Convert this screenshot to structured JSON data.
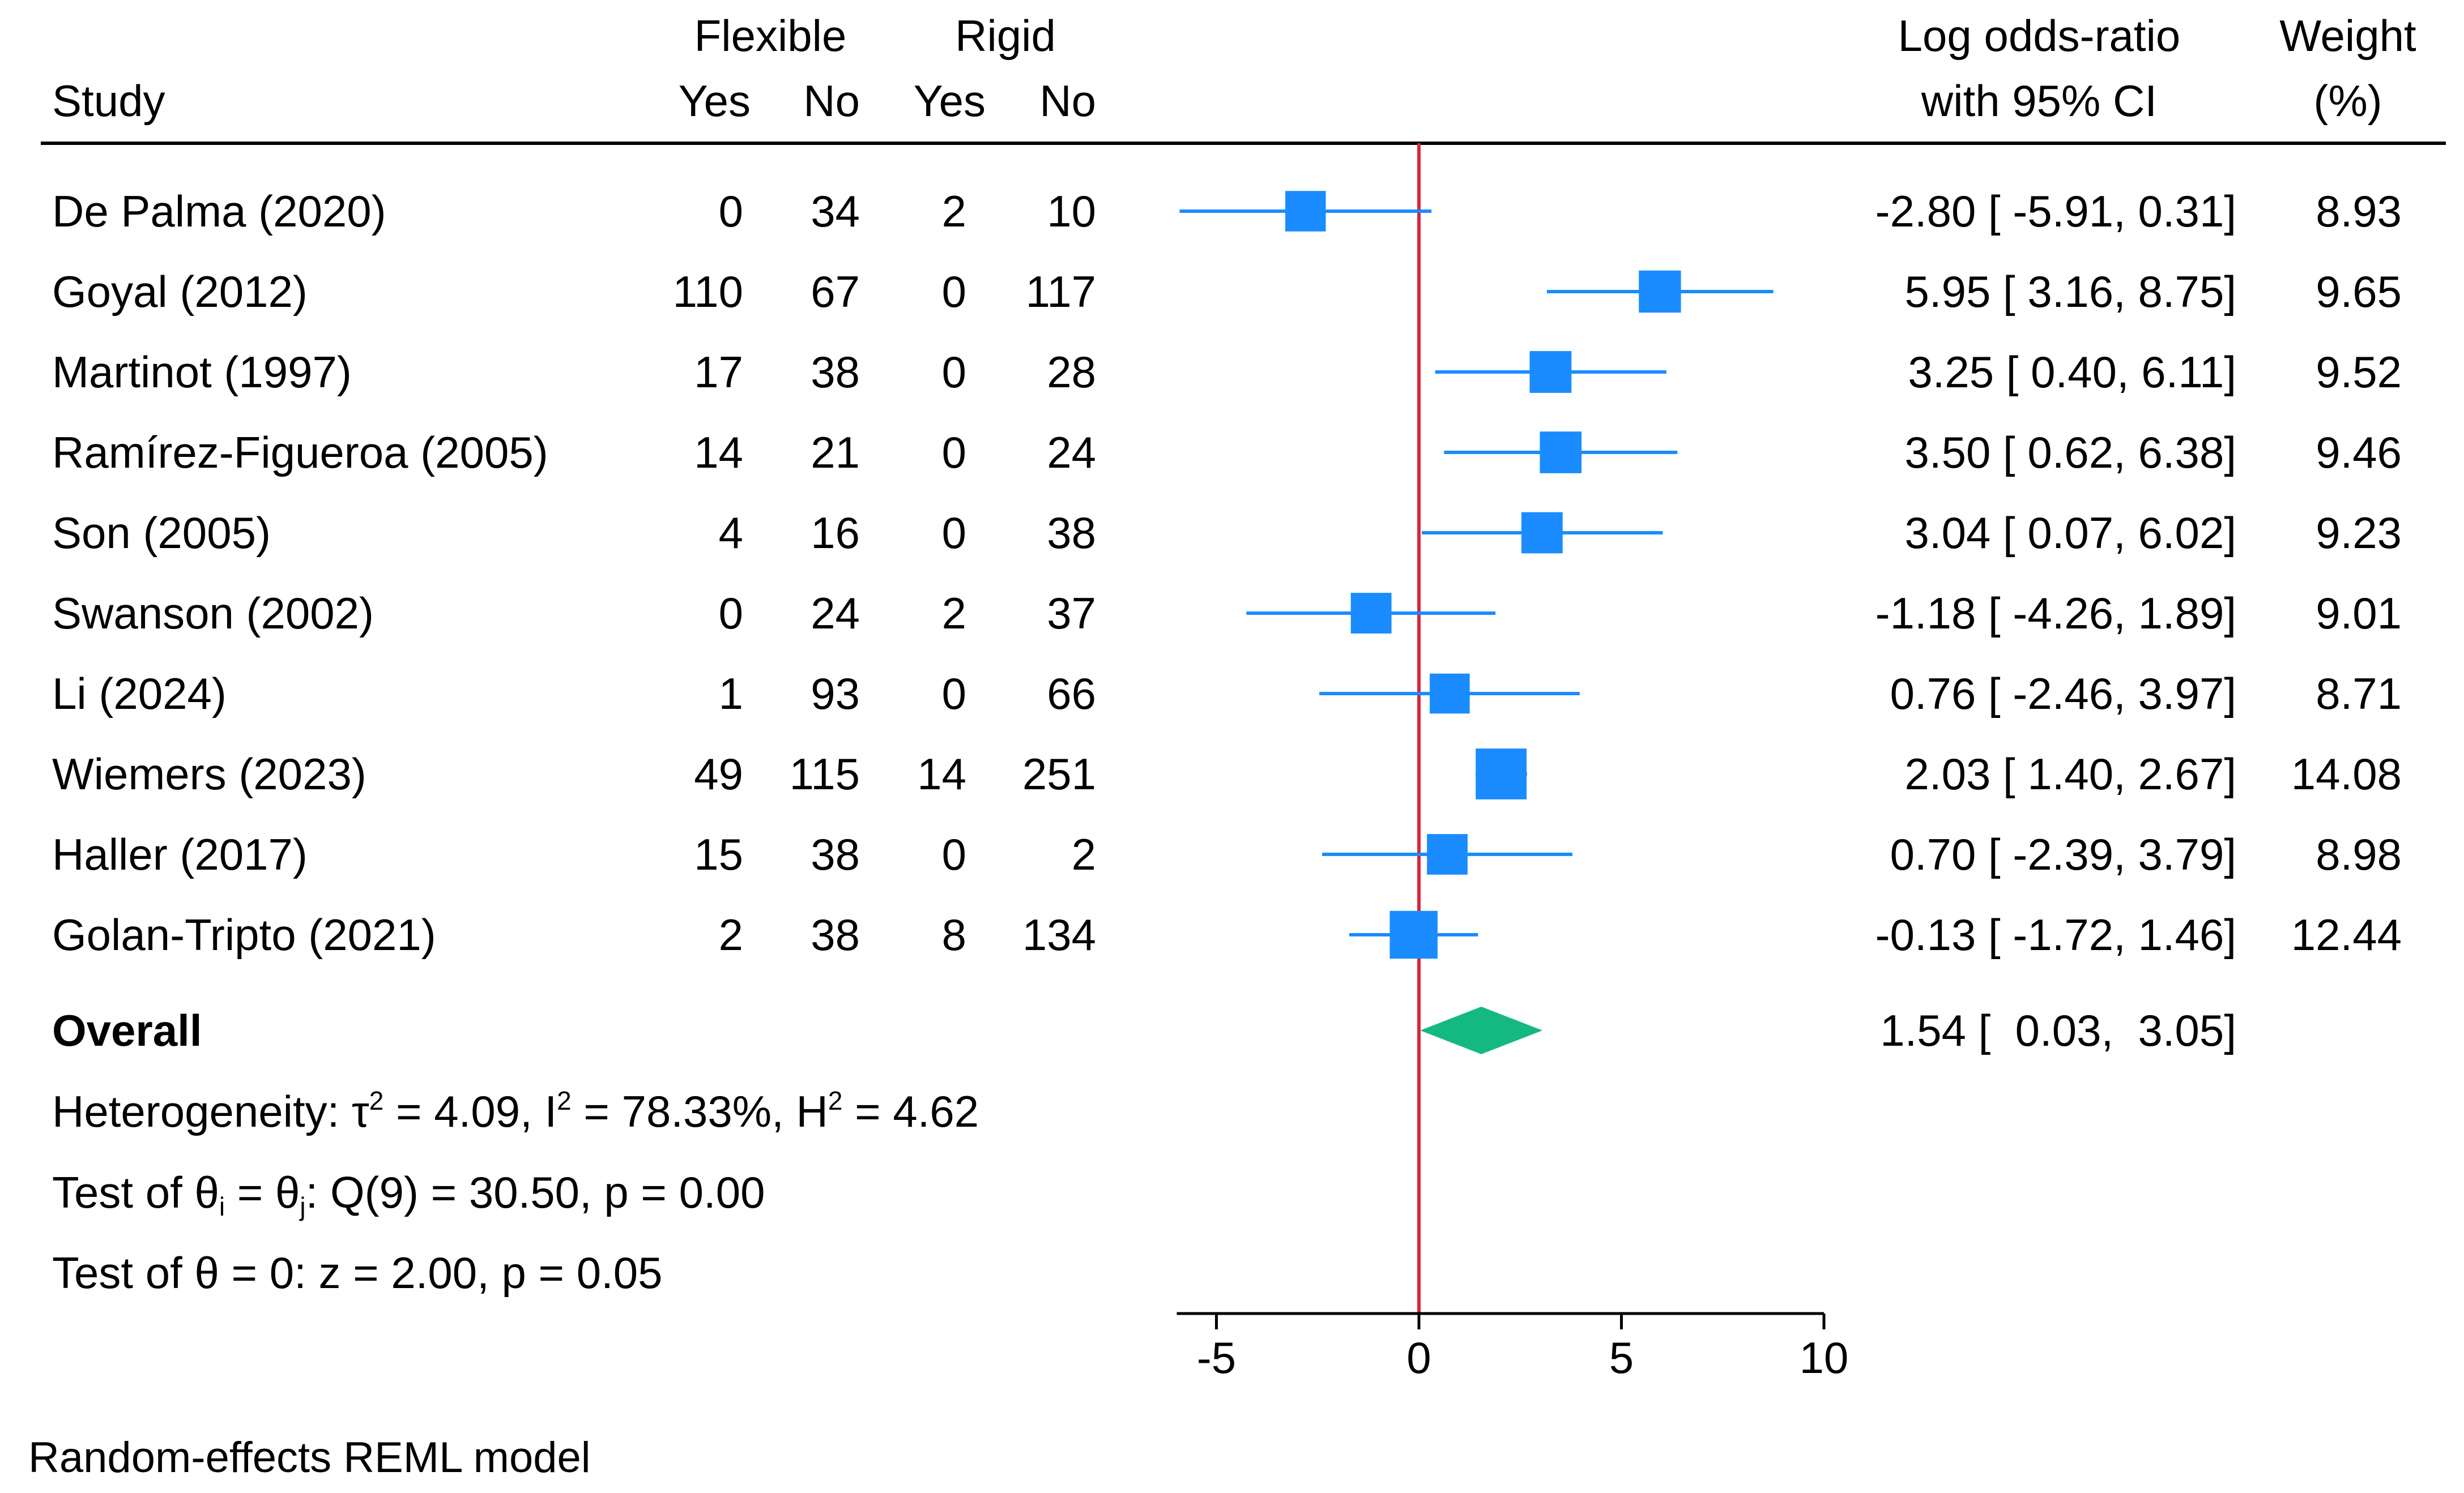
{
  "colors": {
    "square": "#1a8cff",
    "ci_line": "#1a8cff",
    "diamond": "#14b982",
    "null_line": "#d7263d",
    "text": "#000000"
  },
  "header": {
    "group1": "Flexible",
    "group2": "Rigid",
    "study": "Study",
    "yes1": "Yes",
    "no1": "No",
    "yes2": "Yes",
    "no2": "No",
    "effect_line1": "Log odds-ratio",
    "effect_line2": "with 95% CI",
    "weight_line1": "Weight",
    "weight_line2": "(%)"
  },
  "chart_data": {
    "type": "forest",
    "xlim": [
      -5,
      10
    ],
    "xticks": [
      -5,
      0,
      5,
      10
    ],
    "null_value": 0,
    "studies": [
      {
        "name": "De Palma (2020)",
        "flex_yes": "0",
        "flex_no": "34",
        "rigid_yes": "2",
        "rigid_no": "10",
        "est": -2.8,
        "lo": -5.91,
        "hi": 0.31,
        "ci_text": "-2.80 [ -5.91,  0.31]",
        "weight": 8.93,
        "weight_text": "8.93"
      },
      {
        "name": "Goyal (2012)",
        "flex_yes": "110",
        "flex_no": "67",
        "rigid_yes": "0",
        "rigid_no": "117",
        "est": 5.95,
        "lo": 3.16,
        "hi": 8.75,
        "ci_text": "5.95 [  3.16,  8.75]",
        "weight": 9.65,
        "weight_text": "9.65"
      },
      {
        "name": "Martinot (1997)",
        "flex_yes": "17",
        "flex_no": "38",
        "rigid_yes": "0",
        "rigid_no": "28",
        "est": 3.25,
        "lo": 0.4,
        "hi": 6.11,
        "ci_text": "3.25 [  0.40,  6.11]",
        "weight": 9.52,
        "weight_text": "9.52"
      },
      {
        "name": "Ramírez-Figueroa (2005)",
        "flex_yes": "14",
        "flex_no": "21",
        "rigid_yes": "0",
        "rigid_no": "24",
        "est": 3.5,
        "lo": 0.62,
        "hi": 6.38,
        "ci_text": "3.50 [  0.62,  6.38]",
        "weight": 9.46,
        "weight_text": "9.46"
      },
      {
        "name": "Son (2005)",
        "flex_yes": "4",
        "flex_no": "16",
        "rigid_yes": "0",
        "rigid_no": "38",
        "est": 3.04,
        "lo": 0.07,
        "hi": 6.02,
        "ci_text": "3.04 [  0.07,  6.02]",
        "weight": 9.23,
        "weight_text": "9.23"
      },
      {
        "name": "Swanson (2002)",
        "flex_yes": "0",
        "flex_no": "24",
        "rigid_yes": "2",
        "rigid_no": "37",
        "est": -1.18,
        "lo": -4.26,
        "hi": 1.89,
        "ci_text": "-1.18 [ -4.26,  1.89]",
        "weight": 9.01,
        "weight_text": "9.01"
      },
      {
        "name": "Li (2024)",
        "flex_yes": "1",
        "flex_no": "93",
        "rigid_yes": "0",
        "rigid_no": "66",
        "est": 0.76,
        "lo": -2.46,
        "hi": 3.97,
        "ci_text": "0.76 [ -2.46,  3.97]",
        "weight": 8.71,
        "weight_text": "8.71"
      },
      {
        "name": "Wiemers (2023)",
        "flex_yes": "49",
        "flex_no": "115",
        "rigid_yes": "14",
        "rigid_no": "251",
        "est": 2.03,
        "lo": 1.4,
        "hi": 2.67,
        "ci_text": "2.03 [  1.40,  2.67]",
        "weight": 14.08,
        "weight_text": "14.08"
      },
      {
        "name": "Haller (2017)",
        "flex_yes": "15",
        "flex_no": "38",
        "rigid_yes": "0",
        "rigid_no": "2",
        "est": 0.7,
        "lo": -2.39,
        "hi": 3.79,
        "ci_text": "0.70 [ -2.39,  3.79]",
        "weight": 8.98,
        "weight_text": "8.98"
      },
      {
        "name": "Golan-Tripto (2021)",
        "flex_yes": "2",
        "flex_no": "38",
        "rigid_yes": "8",
        "rigid_no": "134",
        "est": -0.13,
        "lo": -1.72,
        "hi": 1.46,
        "ci_text": "-0.13 [ -1.72,  1.46]",
        "weight": 12.44,
        "weight_text": "12.44"
      }
    ],
    "overall": {
      "label": "Overall",
      "est": 1.54,
      "lo": 0.03,
      "hi": 3.05,
      "ci_text": "1.54 [  0.03,  3.05]"
    },
    "heterogeneity": {
      "prefix": "Heterogeneity: ",
      "tau_symbol": "τ",
      "tau_value": " = 4.09, ",
      "i_symbol": "I",
      "i_value": " = 78.33%, ",
      "h_symbol": "H",
      "h_value": " = 4.62",
      "sup": "2"
    },
    "q_test": {
      "prefix": "Test of ",
      "theta": "θ",
      "sub_i": "i",
      "equals": " = ",
      "sub_j": "j",
      "suffix": ": Q(9) = 30.50, p = 0.00"
    },
    "z_test": "Test of θ = 0: z = 2.00, p = 0.05",
    "footnote": "Random-effects REML model"
  }
}
